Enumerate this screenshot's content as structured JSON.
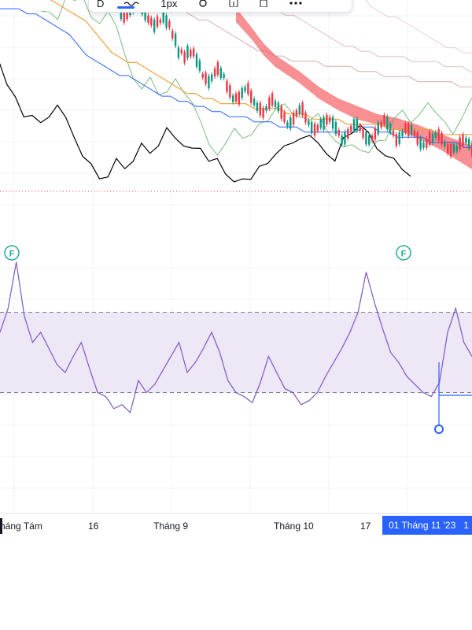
{
  "toolbar": {
    "interval_label": "D",
    "width_label": "1px"
  },
  "xaxis": {
    "ticks": [
      "háng Tám",
      "16",
      "Tháng 9",
      "Tháng 10",
      "17"
    ],
    "highlight_label": "01 Tháng 11 '23",
    "highlight_extra": "1"
  },
  "markers": [
    "F",
    "F"
  ],
  "colors": {
    "background": "#ffffff",
    "grid": "#f0f3fa",
    "candle_up": "#089981",
    "candle_down": "#f23645",
    "cloud_bear": "#f77c80",
    "lagging_span": "#000000",
    "leading_green": "#43a047",
    "base_line": "#e8a33c",
    "conversion_line": "#2962ff",
    "band_upper": "#b26a6a",
    "rsi_line": "#7e57c2",
    "rsi_band": "#ede7f6",
    "price_line": "#f23645",
    "accent": "#2962ff"
  },
  "chart_data": [
    {
      "type": "line",
      "panel": "price",
      "series": [
        {
          "values": [
            30,
            31,
            29,
            32,
            31,
            33,
            30,
            28,
            29,
            26,
            22,
            18,
            15,
            16,
            13,
            15,
            18,
            14,
            11,
            8,
            5,
            3,
            4,
            6,
            5,
            7,
            9,
            8,
            10,
            12,
            11,
            10,
            8,
            9,
            7,
            6,
            4,
            3,
            2,
            3,
            6,
            5,
            8,
            10,
            9,
            11,
            12,
            9,
            8,
            7,
            10,
            12,
            14,
            11,
            9,
            8,
            6,
            5,
            4
          ]
        },
        {
          "values": [
            33,
            34,
            33,
            34,
            33,
            34,
            33,
            32,
            31,
            30,
            29,
            28,
            26,
            24,
            22,
            21,
            20,
            20,
            19,
            18,
            17,
            16,
            15,
            14,
            14,
            13,
            13,
            12,
            12,
            12,
            12,
            11,
            11,
            11,
            11,
            10,
            10,
            10,
            9,
            9,
            9,
            9,
            8,
            8,
            8,
            8,
            8,
            7,
            7,
            7,
            7,
            7,
            7,
            6,
            6,
            6,
            6,
            6,
            6
          ]
        },
        {
          "values": [
            32,
            32,
            32,
            32,
            31,
            31,
            30,
            29,
            28,
            27,
            25,
            23,
            22,
            21,
            20,
            19,
            19,
            18,
            17,
            16,
            15,
            15,
            14,
            14,
            13,
            13,
            12,
            12,
            11,
            11,
            11,
            10,
            10,
            10,
            9,
            9,
            9,
            8,
            8,
            8,
            8,
            8,
            8,
            8,
            9,
            9,
            8,
            8,
            7,
            7,
            7,
            7,
            6,
            6,
            6,
            6,
            5,
            5,
            5
          ]
        }
      ]
    },
    {
      "type": "line",
      "panel": "oscillator",
      "y_reference": [
        30,
        70
      ],
      "series": [
        {
          "values": [
            60,
            72,
            95,
            68,
            55,
            60,
            52,
            44,
            40,
            48,
            55,
            42,
            30,
            28,
            22,
            24,
            20,
            36,
            30,
            34,
            41,
            48,
            55,
            40,
            45,
            52,
            60,
            50,
            36,
            30,
            28,
            25,
            35,
            48,
            40,
            32,
            30,
            24,
            26,
            30,
            38,
            45,
            52,
            60,
            70,
            90,
            75,
            62,
            50,
            45,
            38,
            34,
            30,
            28,
            35,
            60,
            72,
            55,
            48
          ]
        }
      ]
    }
  ]
}
